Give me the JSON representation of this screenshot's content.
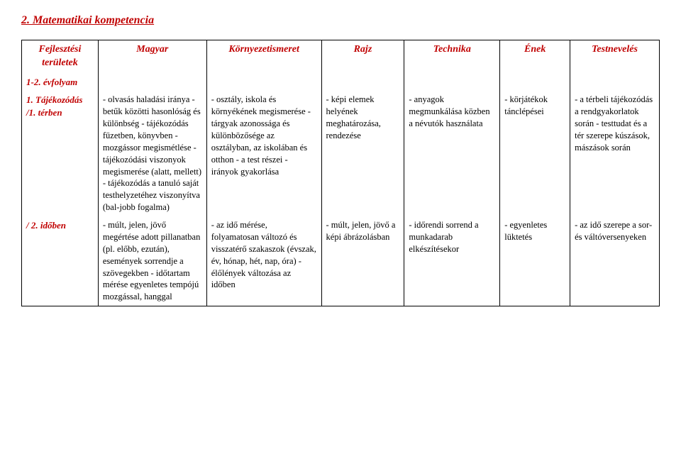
{
  "title": "2. Matematikai kompetencia",
  "headers": [
    "Fejlesztési területek",
    "Magyar",
    "Környezetismeret",
    "Rajz",
    "Technika",
    "Ének",
    "Testnevelés"
  ],
  "grade_row": "1-2. évfolyam",
  "rows": [
    {
      "label": "1. Tájékozódás /1. térben",
      "cells": [
        "- olvasás haladási iránya\n- betűk közötti hasonlóság és különbség\n- tájékozódás füzetben, könyvben\n- mozgássor megismétlése\n- tájékozódási viszonyok megismerése (alatt, mellett)\n- tájékozódás a tanuló saját testhelyzetéhez viszonyítva (bal-jobb fogalma)",
        "- osztály, iskola és környékének megismerése\n- tárgyak azonossága és különbözősége az osztályban, az iskolában és otthon\n- a test részei\n- irányok gyakorlása",
        "- képi elemek helyének meghatározása, rendezése",
        "- anyagok megmunkálása közben a névutók használata",
        "- körjátékok tánclépései",
        "- a térbeli tájékozódás a rendgyakorlatok során\n- testtudat és a tér szerepe kúszások, mászások során"
      ]
    },
    {
      "label": "/ 2. időben",
      "cells": [
        "- múlt, jelen, jövő megértése adott pillanatban (pl. előbb, ezután), események sorrendje a szövegekben\n- időtartam mérése egyenletes tempójú mozgással, hanggal",
        "- az idő mérése, folyamatosan változó és visszatérő szakaszok (évszak, év, hónap, hét, nap, óra)\n- élőlények változása az időben",
        "- múlt, jelen, jövő a képi ábrázolásban",
        "- időrendi sorrend a munkadarab elkészítésekor",
        "- egyenletes lüktetés",
        "- az idő szerepe a sor- és váltóversenyeken"
      ]
    }
  ],
  "colors": {
    "accent": "#c00000",
    "text": "#000000",
    "bg": "#ffffff"
  }
}
